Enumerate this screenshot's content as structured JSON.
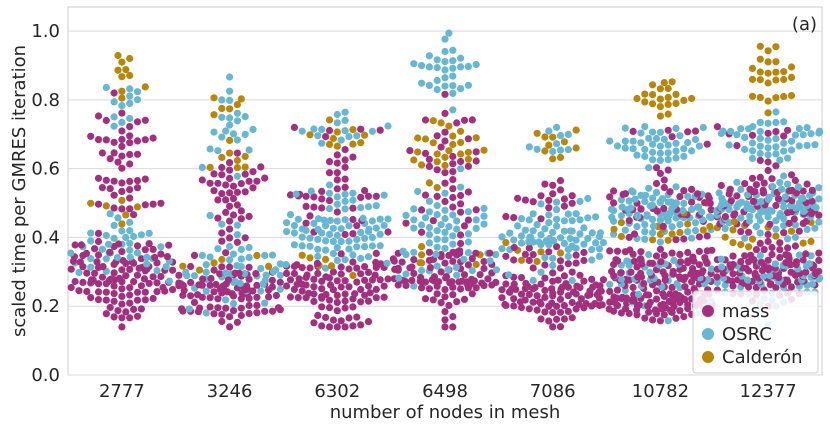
{
  "chart_data": {
    "type": "scatter",
    "subtype": "swarm",
    "panel_label": "(a)",
    "xlabel": "number of nodes in mesh",
    "ylabel": "scaled time per GMRES iteration",
    "categories": [
      "2777",
      "3246",
      "6302",
      "6498",
      "7086",
      "10782",
      "12377"
    ],
    "ylim": [
      0.0,
      1.07
    ],
    "yticks": [
      "0.0",
      "0.2",
      "0.4",
      "0.6",
      "0.8",
      "1.0"
    ],
    "ytick_values": [
      0.0,
      0.2,
      0.4,
      0.6,
      0.8,
      1.0
    ],
    "grid": true,
    "legend_position": "bottom-right",
    "series": [
      {
        "name": "mass",
        "color": "#a3307e",
        "clusters": [
          [
            [
              0.29,
              0.06,
              110
            ],
            [
              0.62,
              0.08,
              40
            ],
            [
              0.5,
              0.03,
              10
            ]
          ],
          [
            [
              0.24,
              0.05,
              90
            ],
            [
              0.56,
              0.05,
              30
            ],
            [
              0.44,
              0.04,
              15
            ]
          ],
          [
            [
              0.25,
              0.05,
              100
            ],
            [
              0.5,
              0.05,
              35
            ],
            [
              0.68,
              0.03,
              8
            ]
          ],
          [
            [
              0.28,
              0.05,
              95
            ],
            [
              0.65,
              0.07,
              30
            ],
            [
              0.5,
              0.04,
              12
            ]
          ],
          [
            [
              0.23,
              0.04,
              100
            ],
            [
              0.5,
              0.04,
              18
            ],
            [
              0.34,
              0.02,
              12
            ]
          ],
          [
            [
              0.21,
              0.025,
              80
            ],
            [
              0.31,
              0.04,
              95
            ],
            [
              0.5,
              0.05,
              45
            ],
            [
              0.7,
              0.02,
              6
            ]
          ],
          [
            [
              0.3,
              0.04,
              110
            ],
            [
              0.5,
              0.05,
              75
            ],
            [
              0.7,
              0.02,
              8
            ]
          ]
        ]
      },
      {
        "name": "OSRC",
        "color": "#67b6d2",
        "clusters": [
          [
            [
              0.36,
              0.05,
              40
            ],
            [
              0.78,
              0.04,
              12
            ]
          ],
          [
            [
              0.3,
              0.06,
              50
            ],
            [
              0.7,
              0.06,
              22
            ]
          ],
          [
            [
              0.42,
              0.06,
              80
            ],
            [
              0.72,
              0.03,
              15
            ]
          ],
          [
            [
              0.4,
              0.08,
              60
            ],
            [
              0.88,
              0.06,
              30
            ]
          ],
          [
            [
              0.4,
              0.06,
              75
            ],
            [
              0.68,
              0.03,
              10
            ]
          ],
          [
            [
              0.47,
              0.04,
              85
            ],
            [
              0.67,
              0.03,
              40
            ],
            [
              0.28,
              0.05,
              40
            ]
          ],
          [
            [
              0.48,
              0.04,
              95
            ],
            [
              0.69,
              0.03,
              45
            ],
            [
              0.28,
              0.04,
              55
            ]
          ]
        ]
      },
      {
        "name": "Calderón",
        "color": "#b8860b",
        "clusters": [
          [
            [
              0.9,
              0.05,
              10
            ],
            [
              0.47,
              0.02,
              6
            ]
          ],
          [
            [
              0.78,
              0.03,
              6
            ],
            [
              0.63,
              0.03,
              8
            ],
            [
              0.33,
              0.02,
              6
            ]
          ],
          [
            [
              0.7,
              0.03,
              10
            ],
            [
              0.32,
              0.02,
              6
            ]
          ],
          [
            [
              0.65,
              0.05,
              25
            ],
            [
              0.32,
              0.02,
              6
            ]
          ],
          [
            [
              0.68,
              0.03,
              10
            ],
            [
              0.36,
              0.02,
              6
            ]
          ],
          [
            [
              0.81,
              0.03,
              20
            ],
            [
              0.4,
              0.03,
              15
            ]
          ],
          [
            [
              0.87,
              0.05,
              25
            ],
            [
              0.4,
              0.03,
              15
            ]
          ]
        ]
      }
    ]
  }
}
